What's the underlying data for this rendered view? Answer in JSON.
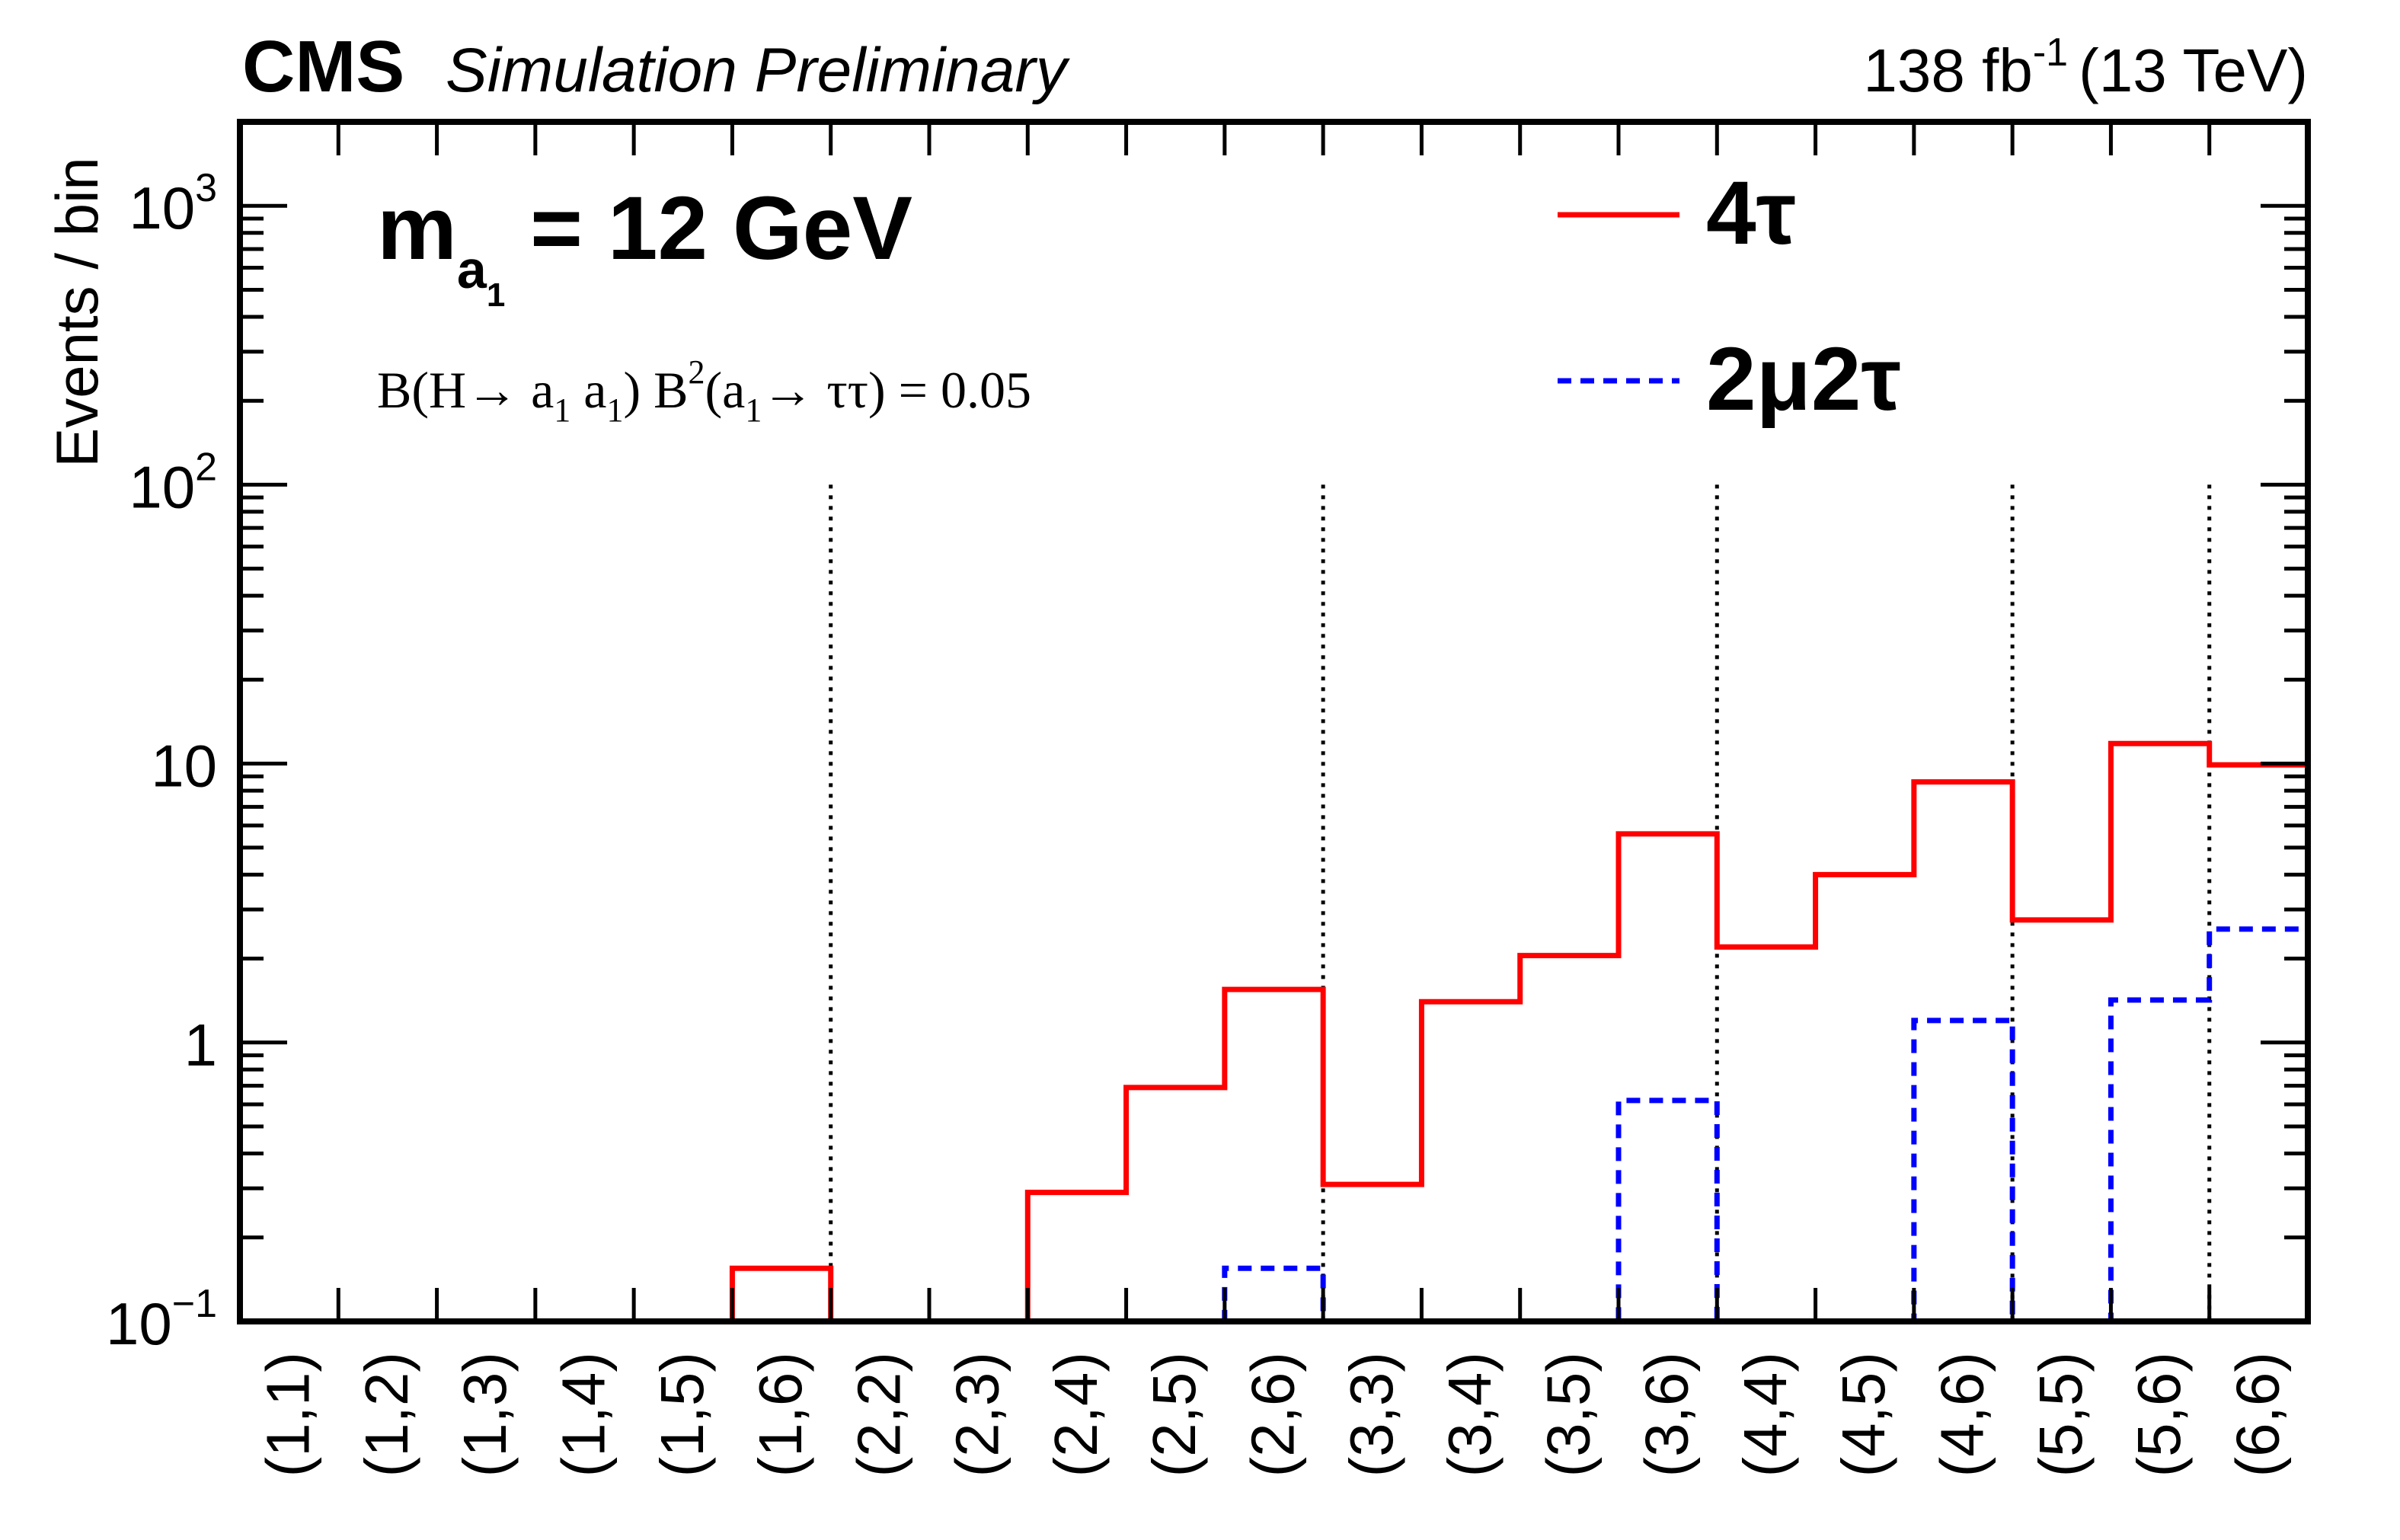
{
  "header": {
    "experiment": "CMS",
    "label": "Simulation Preliminary",
    "lumi_value": "138 fb",
    "lumi_exponent": "-1",
    "energy": "(13 TeV)"
  },
  "annotations": {
    "mass_main": "m",
    "mass_sub": "a",
    "mass_subsub": "1",
    "mass_value": " = 12 GeV",
    "br_text": {
      "p1": "B(H→ a",
      "s1": "1",
      "p2": " a",
      "s2": "1",
      "p3": ") B",
      "sup": "2",
      "p4": "(a",
      "s3": "1",
      "p5": "→ ττ) = 0.05"
    }
  },
  "chart_data": {
    "type": "line",
    "style": "step-histogram",
    "ylabel": "Events / bin",
    "y_scale": "log",
    "ylim": [
      0.1,
      2000
    ],
    "y_ticks": [
      {
        "value": 0.1,
        "base": "10",
        "exp": "−1"
      },
      {
        "value": 1,
        "base": "1",
        "exp": ""
      },
      {
        "value": 10,
        "base": "10",
        "exp": ""
      },
      {
        "value": 100,
        "base": "10",
        "exp": "2"
      },
      {
        "value": 1000,
        "base": "10",
        "exp": "3"
      }
    ],
    "categories": [
      "(1,1)",
      "(1,2)",
      "(1,3)",
      "(1,4)",
      "(1,5)",
      "(1,6)",
      "(2,2)",
      "(2,3)",
      "(2,4)",
      "(2,5)",
      "(2,6)",
      "(3,3)",
      "(3,4)",
      "(3,5)",
      "(3,6)",
      "(4,4)",
      "(4,5)",
      "(4,6)",
      "(5,5)",
      "(5,6)",
      "(6,6)"
    ],
    "group_separators_after_index": [
      5,
      10,
      14,
      17,
      19
    ],
    "series": [
      {
        "name": "4τ",
        "color": "#ff0000",
        "dash": "solid",
        "values": [
          0.1,
          0.1,
          0.1,
          0.1,
          0.1,
          0.155,
          0.1,
          0.1,
          0.29,
          0.69,
          1.55,
          0.31,
          1.4,
          2.05,
          5.6,
          2.2,
          4.0,
          8.6,
          2.75,
          11.8,
          9.9
        ]
      },
      {
        "name": "2μ2τ",
        "color": "#0000ff",
        "dash": "dashed",
        "values": [
          0.1,
          0.1,
          0.1,
          0.1,
          0.1,
          0.1,
          0.1,
          0.1,
          0.1,
          0.1,
          0.155,
          0.1,
          0.1,
          0.1,
          0.62,
          0.1,
          0.1,
          1.2,
          0.1,
          1.42,
          2.55
        ]
      }
    ],
    "legend": {
      "placement": "top-right"
    }
  }
}
